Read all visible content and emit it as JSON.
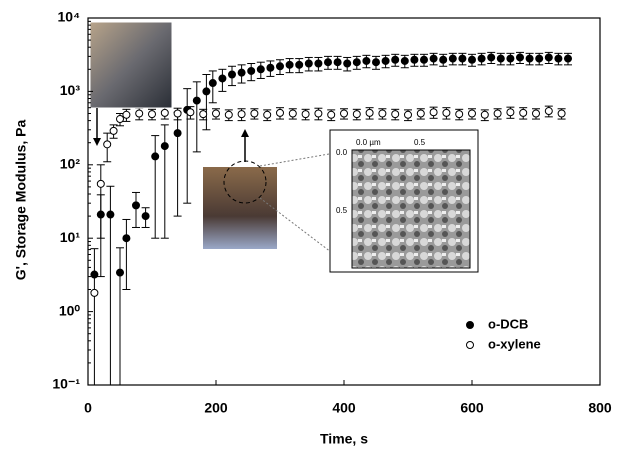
{
  "chart_data": {
    "type": "scatter",
    "x_label": "Time, s",
    "y_label": "G', Storage Modulus, Pa",
    "xlim": [
      0,
      800
    ],
    "xticks": [
      0,
      200,
      400,
      600,
      800
    ],
    "ylim": [
      0.1,
      10000
    ],
    "ylog": true,
    "yticks": [
      {
        "value": 0.1,
        "label": "10⁻¹"
      },
      {
        "value": 1,
        "label": "10⁰"
      },
      {
        "value": 10,
        "label": "10¹"
      },
      {
        "value": 100,
        "label": "10²"
      },
      {
        "value": 1000,
        "label": "10³"
      },
      {
        "value": 10000,
        "label": "10⁴"
      }
    ],
    "legend": "lower right",
    "series": [
      {
        "name": "o-DCB",
        "color": "#000000",
        "marker": "filled",
        "x": [
          10,
          20,
          35,
          50,
          60,
          75,
          90,
          105,
          120,
          140,
          155,
          170,
          185,
          195,
          210,
          225,
          240,
          255,
          270,
          285,
          300,
          315,
          330,
          345,
          360,
          375,
          390,
          405,
          420,
          435,
          450,
          465,
          480,
          495,
          510,
          525,
          540,
          555,
          570,
          585,
          600,
          615,
          630,
          645,
          660,
          675,
          690,
          705,
          720,
          735,
          750
        ],
        "values": [
          3.2,
          21,
          21,
          3.4,
          10,
          28,
          20,
          130,
          180,
          270,
          560,
          750,
          1000,
          1300,
          1500,
          1700,
          1800,
          1900,
          2000,
          2100,
          2200,
          2300,
          2300,
          2400,
          2400,
          2500,
          2500,
          2400,
          2500,
          2600,
          2500,
          2600,
          2700,
          2600,
          2700,
          2700,
          2800,
          2700,
          2800,
          2800,
          2700,
          2800,
          2900,
          2800,
          2800,
          2900,
          2800,
          2800,
          2900,
          2800,
          2800
        ],
        "errors": [
          4,
          18,
          30,
          4,
          8,
          14,
          6,
          120,
          170,
          250,
          530,
          600,
          700,
          600,
          500,
          500,
          500,
          500,
          500,
          500,
          500,
          500,
          500,
          500,
          500,
          500,
          500,
          500,
          500,
          500,
          500,
          500,
          500,
          500,
          500,
          500,
          500,
          500,
          500,
          500,
          500,
          500,
          500,
          500,
          500,
          500,
          500,
          500,
          500,
          500,
          500
        ]
      },
      {
        "name": "o-xylene",
        "color": "#000000",
        "marker": "open",
        "x": [
          10,
          20,
          30,
          40,
          50,
          60,
          80,
          100,
          120,
          140,
          160,
          180,
          200,
          220,
          240,
          260,
          280,
          300,
          320,
          340,
          360,
          380,
          400,
          420,
          440,
          460,
          480,
          500,
          520,
          540,
          560,
          580,
          600,
          620,
          640,
          660,
          680,
          700,
          720,
          740
        ],
        "values": [
          1.8,
          55,
          190,
          290,
          420,
          480,
          500,
          490,
          510,
          500,
          520,
          490,
          500,
          480,
          490,
          500,
          480,
          510,
          500,
          490,
          500,
          480,
          500,
          490,
          510,
          500,
          490,
          480,
          500,
          520,
          510,
          490,
          500,
          480,
          500,
          520,
          510,
          500,
          540,
          500
        ],
        "errors": [
          0,
          45,
          80,
          60,
          80,
          90,
          90,
          80,
          90,
          90,
          100,
          80,
          80,
          80,
          90,
          80,
          80,
          90,
          80,
          80,
          90,
          80,
          80,
          80,
          90,
          80,
          80,
          80,
          80,
          90,
          90,
          80,
          80,
          80,
          80,
          90,
          90,
          80,
          90,
          80
        ]
      }
    ],
    "annotations": [
      "0.0 µm",
      "0.5",
      "0.0",
      "0.5"
    ]
  }
}
